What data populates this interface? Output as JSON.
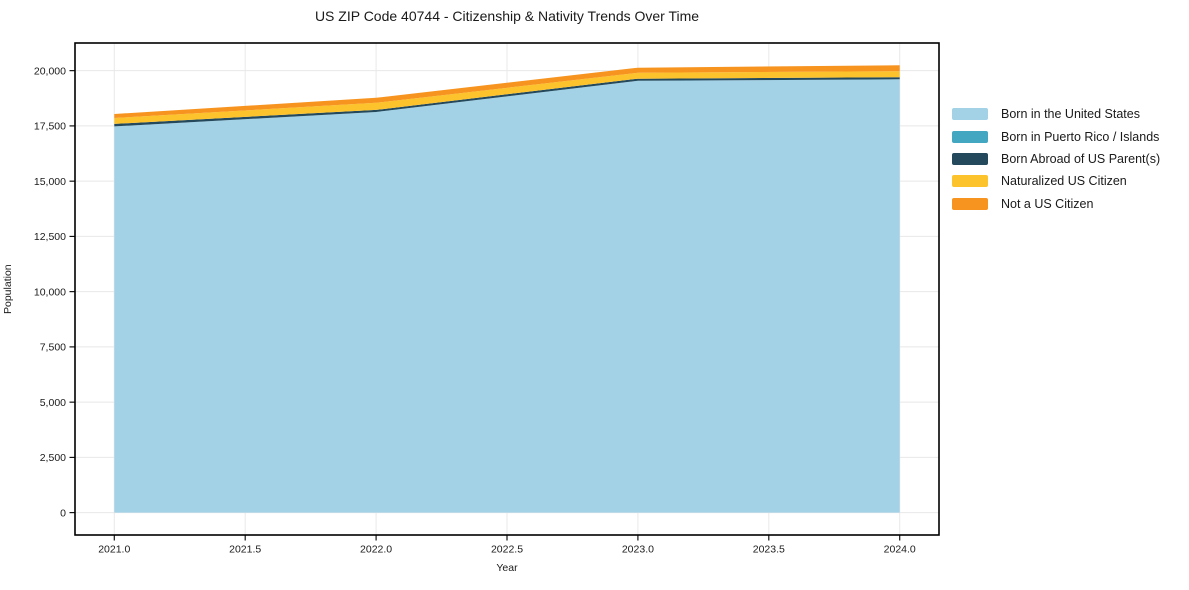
{
  "chart_data": {
    "type": "area",
    "stacked": true,
    "title": "US ZIP Code 40744 - Citizenship & Nativity Trends Over Time",
    "xlabel": "Year",
    "ylabel": "Population",
    "x": [
      2021,
      2022,
      2023,
      2024
    ],
    "series": [
      {
        "name": "Born in the United States",
        "color": "#a3d2e7",
        "values": [
          17480,
          18130,
          19540,
          19610
        ]
      },
      {
        "name": "Born in Puerto Rico / Islands",
        "color": "#44a7c2",
        "values": [
          0,
          0,
          0,
          0
        ]
      },
      {
        "name": "Born Abroad of US Parent(s)",
        "color": "#24495c",
        "values": [
          110,
          95,
          95,
          95
        ]
      },
      {
        "name": "Naturalized US Citizen",
        "color": "#fcc32d",
        "values": [
          270,
          320,
          270,
          270
        ]
      },
      {
        "name": "Not a US Citizen",
        "color": "#f7941f",
        "values": [
          180,
          225,
          230,
          270
        ]
      }
    ],
    "totals": [
      18040,
      18770,
      20135,
      20245
    ],
    "xlim": [
      2020.85,
      2024.15
    ],
    "ylim": [
      -1012,
      21252
    ],
    "x_ticks": [
      2021.0,
      2021.5,
      2022.0,
      2022.5,
      2023.0,
      2023.5,
      2024.0
    ],
    "x_tick_labels": [
      "2021.0",
      "2021.5",
      "2022.0",
      "2022.5",
      "2023.0",
      "2023.5",
      "2024.0"
    ],
    "y_ticks": [
      0,
      2500,
      5000,
      7500,
      10000,
      12500,
      15000,
      17500,
      20000
    ],
    "y_tick_labels": [
      "0",
      "2,500",
      "5,000",
      "7,500",
      "10,000",
      "12,500",
      "15,000",
      "17,500",
      "20,000"
    ],
    "grid": true,
    "grid_color": "#e8e8e8",
    "border_color": "#000000",
    "legend_position": "right"
  }
}
